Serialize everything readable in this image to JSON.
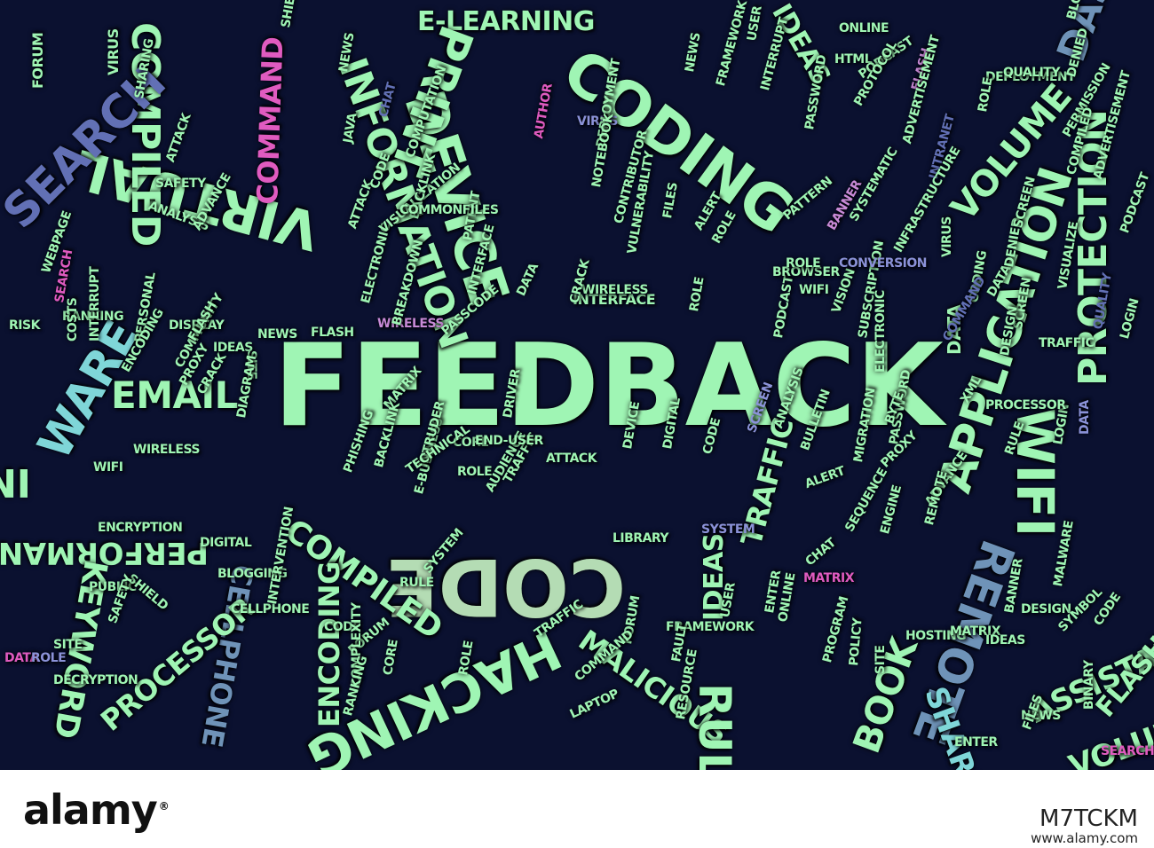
{
  "colors": {
    "background": "#0b1130",
    "mint": "#9ff5b4",
    "sage": "#b4dcb4",
    "steel_blue": "#6f93b8",
    "slate_blue": "#6270b5",
    "periwinkle": "#8b92d8",
    "teal": "#7fd6d8",
    "pink": "#e05bc0",
    "orchid": "#c88ad6"
  },
  "words": [
    {
      "text": "FEEDBACK",
      "color": "mint"
    },
    {
      "text": "CODE",
      "color": "sage"
    },
    {
      "text": "DEVICE",
      "color": "mint"
    },
    {
      "text": "CODING",
      "color": "mint"
    },
    {
      "text": "APPLICATION",
      "color": "mint"
    },
    {
      "text": "VIRTUAL",
      "color": "mint"
    },
    {
      "text": "INFORMATION",
      "color": "mint"
    },
    {
      "text": "INFORMATION",
      "color": "mint"
    },
    {
      "text": "COMPILED",
      "color": "mint"
    },
    {
      "text": "COMMAND",
      "color": "pink"
    },
    {
      "text": "SEARCH",
      "color": "slate_blue"
    },
    {
      "text": "E-LEARNING",
      "color": "mint"
    },
    {
      "text": "VOLUME",
      "color": "mint"
    },
    {
      "text": "PROTECTION",
      "color": "mint"
    },
    {
      "text": "REMOTE",
      "color": "steel_blue"
    },
    {
      "text": "WIFI",
      "color": "mint"
    },
    {
      "text": "EMAIL",
      "color": "mint"
    },
    {
      "text": "PERFORMANCE",
      "color": "mint"
    },
    {
      "text": "CELLPHONE",
      "color": "steel_blue"
    },
    {
      "text": "COMPILED",
      "color": "mint"
    },
    {
      "text": "ENCODING",
      "color": "mint"
    },
    {
      "text": "PROCESSOR",
      "color": "mint"
    },
    {
      "text": "MALICIOUS",
      "color": "mint"
    },
    {
      "text": "TRAFFIC",
      "color": "mint"
    },
    {
      "text": "IDEAS",
      "color": "mint"
    },
    {
      "text": "RULE",
      "color": "mint"
    },
    {
      "text": "BOOK",
      "color": "mint"
    },
    {
      "text": "SHARING",
      "color": "teal"
    },
    {
      "text": "ASSISTANT",
      "color": "mint"
    },
    {
      "text": "HACKING",
      "color": "mint"
    },
    {
      "text": "WARE",
      "color": "teal"
    },
    {
      "text": "DATA",
      "color": "mint"
    },
    {
      "text": "KEYWORD",
      "color": "mint"
    },
    {
      "text": "INTERNET",
      "color": "mint"
    },
    {
      "text": "PRINT",
      "color": "mint"
    },
    {
      "text": "IDEAS",
      "color": "mint"
    },
    {
      "text": "DASHBOARD",
      "color": "steel_blue"
    },
    {
      "text": "FLASH",
      "color": "mint"
    },
    {
      "text": "VOLUME",
      "color": "mint"
    },
    {
      "text": "INTERFACE",
      "color": "mint"
    },
    {
      "text": "WIRELESS",
      "color": "orchid"
    },
    {
      "text": "FORUM",
      "color": "mint"
    },
    {
      "text": "VIRUS",
      "color": "mint"
    },
    {
      "text": "WEBPAGE",
      "color": "mint"
    },
    {
      "text": "ANALYSIS",
      "color": "mint"
    },
    {
      "text": "ADVANCE",
      "color": "mint"
    },
    {
      "text": "SAFETY",
      "color": "mint"
    },
    {
      "text": "ATTACK",
      "color": "mint"
    },
    {
      "text": "SHARING",
      "color": "mint"
    },
    {
      "text": "RANKING",
      "color": "mint"
    },
    {
      "text": "DISPLAY",
      "color": "mint"
    },
    {
      "text": "INTERRUPT",
      "color": "mint"
    },
    {
      "text": "COSTS",
      "color": "mint"
    },
    {
      "text": "PERSONAL",
      "color": "mint"
    },
    {
      "text": "RISK",
      "color": "mint"
    },
    {
      "text": "ENCODING",
      "color": "mint"
    },
    {
      "text": "COMMUNITY",
      "color": "mint"
    },
    {
      "text": "FLASH",
      "color": "mint"
    },
    {
      "text": "PROXY",
      "color": "mint"
    },
    {
      "text": "CRACK",
      "color": "mint"
    },
    {
      "text": "WIRELESS",
      "color": "mint"
    },
    {
      "text": "WIFI",
      "color": "mint"
    },
    {
      "text": "ENCRYPTION",
      "color": "mint"
    },
    {
      "text": "DIGITAL",
      "color": "mint"
    },
    {
      "text": "BLOGGING",
      "color": "mint"
    },
    {
      "text": "CELLPHONE",
      "color": "mint"
    },
    {
      "text": "PUBLIC",
      "color": "mint"
    },
    {
      "text": "SHIELD",
      "color": "mint"
    },
    {
      "text": "SAFETY",
      "color": "mint"
    },
    {
      "text": "SITE",
      "color": "mint"
    },
    {
      "text": "DECRYPTION",
      "color": "mint"
    },
    {
      "text": "DATA",
      "color": "pink"
    },
    {
      "text": "ROLE",
      "color": "periwinkle"
    },
    {
      "text": "SEARCH",
      "color": "pink"
    },
    {
      "text": "IDEAS",
      "color": "mint"
    },
    {
      "text": "NEWS",
      "color": "mint"
    },
    {
      "text": "SITE",
      "color": "mint"
    },
    {
      "text": "DIAGRAM",
      "color": "mint"
    },
    {
      "text": "FLASH",
      "color": "mint"
    },
    {
      "text": "MATRIX",
      "color": "mint"
    },
    {
      "text": "CORE",
      "color": "mint"
    },
    {
      "text": "DRIVER",
      "color": "mint"
    },
    {
      "text": "PHISHING",
      "color": "mint"
    },
    {
      "text": "BACKLINK",
      "color": "mint"
    },
    {
      "text": "E-BUSINESS",
      "color": "mint"
    },
    {
      "text": "INTRUDER",
      "color": "mint"
    },
    {
      "text": "TECHNICAL",
      "color": "mint"
    },
    {
      "text": "ROLE",
      "color": "mint"
    },
    {
      "text": "AUDIENCE",
      "color": "mint"
    },
    {
      "text": "TRAFFIC",
      "color": "mint"
    },
    {
      "text": "ATTACK",
      "color": "mint"
    },
    {
      "text": "END-USER",
      "color": "mint"
    },
    {
      "text": "RULE",
      "color": "mint"
    },
    {
      "text": "SYSTEM",
      "color": "mint"
    },
    {
      "text": "DEVICE",
      "color": "mint"
    },
    {
      "text": "LIBRARY",
      "color": "mint"
    },
    {
      "text": "DIGITAL",
      "color": "mint"
    },
    {
      "text": "SYSTEM",
      "color": "periwinkle"
    },
    {
      "text": "CODE",
      "color": "mint"
    },
    {
      "text": "SCREEN",
      "color": "periwinkle"
    },
    {
      "text": "ANALYSIS",
      "color": "mint"
    },
    {
      "text": "BULLETIN",
      "color": "mint"
    },
    {
      "text": "ALERT",
      "color": "mint"
    },
    {
      "text": "SEQUENCE",
      "color": "mint"
    },
    {
      "text": "CHAT",
      "color": "mint"
    },
    {
      "text": "MATRIX",
      "color": "pink"
    },
    {
      "text": "ENTER",
      "color": "mint"
    },
    {
      "text": "ONLINE",
      "color": "mint"
    },
    {
      "text": "USER",
      "color": "mint"
    },
    {
      "text": "FORUM",
      "color": "mint"
    },
    {
      "text": "FRAMEWORK",
      "color": "mint"
    },
    {
      "text": "FAULT",
      "color": "mint"
    },
    {
      "text": "CODE",
      "color": "mint"
    },
    {
      "text": "INTERVENTION",
      "color": "mint"
    },
    {
      "text": "FORUM",
      "color": "mint"
    },
    {
      "text": "COMPLEXITY",
      "color": "mint"
    },
    {
      "text": "RANKING",
      "color": "mint"
    },
    {
      "text": "CORE",
      "color": "mint"
    },
    {
      "text": "ROLE",
      "color": "mint"
    },
    {
      "text": "TRAFFIC",
      "color": "mint"
    },
    {
      "text": "COMMAND",
      "color": "mint"
    },
    {
      "text": "LAPTOP",
      "color": "mint"
    },
    {
      "text": "RESOURCE",
      "color": "mint"
    },
    {
      "text": "SITE",
      "color": "mint"
    },
    {
      "text": "POLICY",
      "color": "mint"
    },
    {
      "text": "PROGRAM",
      "color": "mint"
    },
    {
      "text": "HOSTING",
      "color": "mint"
    },
    {
      "text": "MATRIX",
      "color": "mint"
    },
    {
      "text": "IDEAS",
      "color": "mint"
    },
    {
      "text": "DESIGN",
      "color": "mint"
    },
    {
      "text": "SYMBOL",
      "color": "mint"
    },
    {
      "text": "MALWARE",
      "color": "mint"
    },
    {
      "text": "BANNER",
      "color": "mint"
    },
    {
      "text": "ENTER",
      "color": "mint"
    },
    {
      "text": "NEWS",
      "color": "mint"
    },
    {
      "text": "FILES",
      "color": "mint"
    },
    {
      "text": "BINARY",
      "color": "mint"
    },
    {
      "text": "CODE",
      "color": "mint"
    },
    {
      "text": "DATA",
      "color": "periwinkle"
    },
    {
      "text": "LOGIN",
      "color": "mint"
    },
    {
      "text": "RULE",
      "color": "mint"
    },
    {
      "text": "ADVANCE",
      "color": "mint"
    },
    {
      "text": "REMOTE",
      "color": "mint"
    },
    {
      "text": "PASSWORD",
      "color": "mint"
    },
    {
      "text": "PROXY",
      "color": "mint"
    },
    {
      "text": "ENGINE",
      "color": "mint"
    },
    {
      "text": "MIGRATION",
      "color": "mint"
    },
    {
      "text": "PROCESSOR",
      "color": "mint"
    },
    {
      "text": "SCREEN",
      "color": "mint"
    },
    {
      "text": "DESIGN",
      "color": "mint"
    },
    {
      "text": "BYTE",
      "color": "mint"
    },
    {
      "text": "SUBSCRIPTION",
      "color": "mint"
    },
    {
      "text": "VISION",
      "color": "mint"
    },
    {
      "text": "CODING",
      "color": "mint"
    },
    {
      "text": "COMMAND",
      "color": "slate_blue"
    },
    {
      "text": "XML",
      "color": "mint"
    },
    {
      "text": "DATA",
      "color": "mint"
    },
    {
      "text": "ELECTRONIC",
      "color": "mint"
    },
    {
      "text": "ROLE",
      "color": "mint"
    },
    {
      "text": "PODCAST",
      "color": "mint"
    },
    {
      "text": "BROWSER",
      "color": "mint"
    },
    {
      "text": "WIFI",
      "color": "mint"
    },
    {
      "text": "CONVERSION",
      "color": "periwinkle"
    },
    {
      "text": "ROLE",
      "color": "mint"
    },
    {
      "text": "PATTERN",
      "color": "mint"
    },
    {
      "text": "SYSTEMATIC",
      "color": "mint"
    },
    {
      "text": "BANNER",
      "color": "orchid"
    },
    {
      "text": "ROLE",
      "color": "mint"
    },
    {
      "text": "ALERT",
      "color": "mint"
    },
    {
      "text": "FILES",
      "color": "mint"
    },
    {
      "text": "WIRELESS",
      "color": "mint"
    },
    {
      "text": "CRACK",
      "color": "mint"
    },
    {
      "text": "DATA",
      "color": "mint"
    },
    {
      "text": "INTERFACE",
      "color": "mint"
    },
    {
      "text": "PASSCODE",
      "color": "mint"
    },
    {
      "text": "BREAKDOWN",
      "color": "mint"
    },
    {
      "text": "ELECTRONIC",
      "color": "mint"
    },
    {
      "text": "ATTACK",
      "color": "mint"
    },
    {
      "text": "VISUALIZATION",
      "color": "mint"
    },
    {
      "text": "BACKLINK",
      "color": "mint"
    },
    {
      "text": "PATENT",
      "color": "mint"
    },
    {
      "text": "COMMONFILES",
      "color": "mint"
    },
    {
      "text": "CODE",
      "color": "mint"
    },
    {
      "text": "COMPUTATION",
      "color": "mint"
    },
    {
      "text": "JAVA",
      "color": "mint"
    },
    {
      "text": "SHIELD",
      "color": "mint"
    },
    {
      "text": "NEWS",
      "color": "mint"
    },
    {
      "text": "CHAT",
      "color": "slate_blue"
    },
    {
      "text": "VIRUS",
      "color": "periwinkle"
    },
    {
      "text": "AUTHOR",
      "color": "pink"
    },
    {
      "text": "DEPLOYMENT",
      "color": "mint"
    },
    {
      "text": "NOTEBOOK",
      "color": "mint"
    },
    {
      "text": "CONTRIBUTOR",
      "color": "mint"
    },
    {
      "text": "VULNERABILITY",
      "color": "mint"
    },
    {
      "text": "NEWS",
      "color": "mint"
    },
    {
      "text": "FRAMEWORK",
      "color": "mint"
    },
    {
      "text": "INTERRUPT",
      "color": "mint"
    },
    {
      "text": "USER",
      "color": "mint"
    },
    {
      "text": "ONLINE",
      "color": "mint"
    },
    {
      "text": "HTML",
      "color": "mint"
    },
    {
      "text": "PODCAST",
      "color": "mint"
    },
    {
      "text": "PROTOCOL",
      "color": "mint"
    },
    {
      "text": "FLASH",
      "color": "orchid"
    },
    {
      "text": "ADVERTISEMENT",
      "color": "mint"
    },
    {
      "text": "PASSWORD",
      "color": "mint"
    },
    {
      "text": "DEPLOYMENT",
      "color": "mint"
    },
    {
      "text": "QUALITY",
      "color": "mint"
    },
    {
      "text": "ROLE",
      "color": "mint"
    },
    {
      "text": "BLOCK",
      "color": "mint"
    },
    {
      "text": "DENIED",
      "color": "mint"
    },
    {
      "text": "PERMISSION",
      "color": "mint"
    },
    {
      "text": "COMPILED",
      "color": "mint"
    },
    {
      "text": "INTRANET",
      "color": "slate_blue"
    },
    {
      "text": "ADVERTISEMENT",
      "color": "mint"
    },
    {
      "text": "DENIED",
      "color": "mint"
    },
    {
      "text": "VISUALIZE",
      "color": "mint"
    },
    {
      "text": "SCREEN",
      "color": "mint"
    },
    {
      "text": "VIRUS",
      "color": "mint"
    },
    {
      "text": "INFRASTRUCTURE",
      "color": "mint"
    },
    {
      "text": "QUALITY",
      "color": "slate_blue"
    },
    {
      "text": "TRAFFIC",
      "color": "mint"
    },
    {
      "text": "LOGIN",
      "color": "mint"
    },
    {
      "text": "PODCAST",
      "color": "mint"
    },
    {
      "text": "SEARCH",
      "color": "pink"
    },
    {
      "text": "ROLE",
      "color": "orchid"
    },
    {
      "text": "IDEAS",
      "color": "mint"
    },
    {
      "text": "FLASH",
      "color": "mint"
    },
    {
      "text": "NEWS",
      "color": "mint"
    },
    {
      "text": "DATA",
      "color": "periwinkle"
    },
    {
      "text": "FLASH",
      "color": "mint"
    },
    {
      "text": "VOLUME",
      "color": "mint"
    }
  ],
  "footer": {
    "logo": "alamy",
    "logo_mark": "®",
    "image_id": "M7TCKM",
    "site": "www.alamy.com"
  }
}
